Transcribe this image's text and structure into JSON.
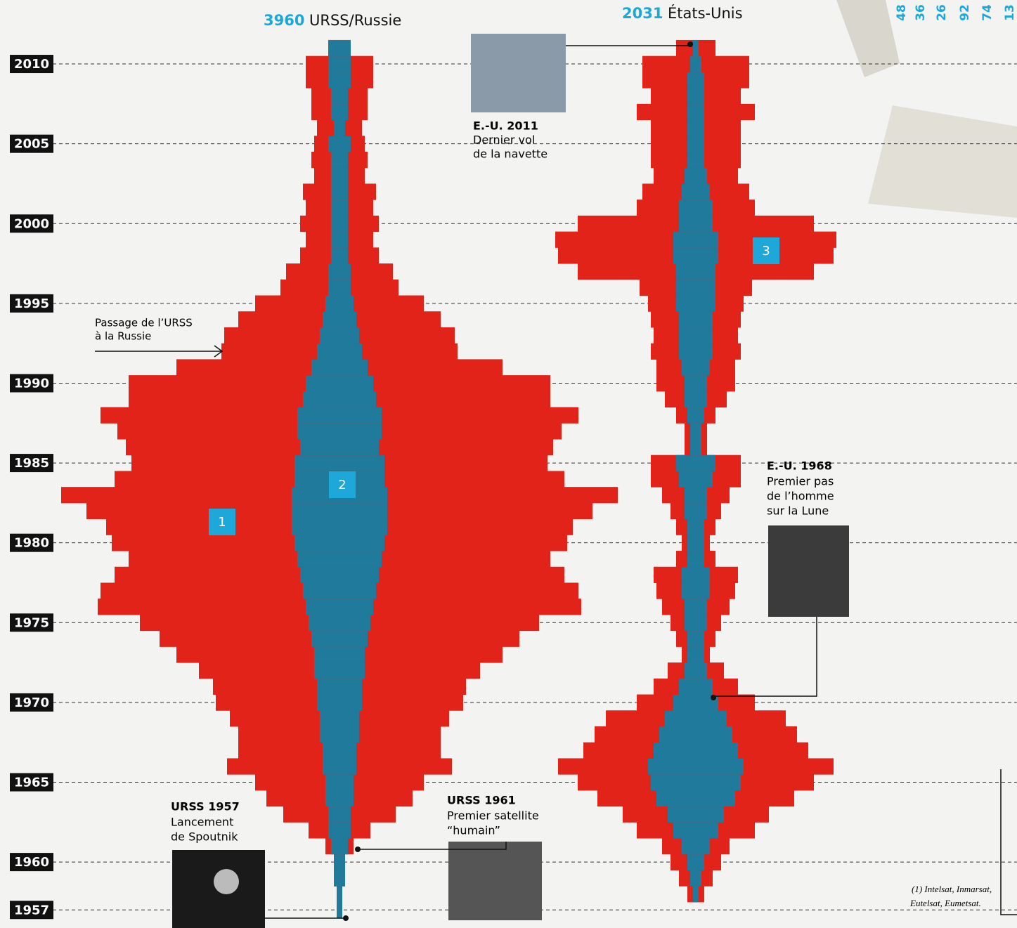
{
  "chart_data": {
    "type": "mirror-bar",
    "years": [
      1957,
      1958,
      1959,
      1960,
      1961,
      1962,
      1963,
      1964,
      1965,
      1966,
      1967,
      1968,
      1969,
      1970,
      1971,
      1972,
      1973,
      1974,
      1975,
      1976,
      1977,
      1978,
      1979,
      1980,
      1981,
      1982,
      1983,
      1984,
      1985,
      1986,
      1987,
      1988,
      1989,
      1990,
      1991,
      1992,
      1993,
      1994,
      1995,
      1996,
      1997,
      1998,
      1999,
      2000,
      2001,
      2002,
      2003,
      2004,
      2005,
      2006,
      2007,
      2008,
      2009,
      2010,
      2011
    ],
    "ylim": [
      1956,
      2012
    ],
    "yticks": [
      1957,
      1960,
      1965,
      1970,
      1975,
      1980,
      1985,
      1990,
      1995,
      2000,
      2005,
      2010
    ],
    "series": [
      {
        "name": "URSS/Russie",
        "total": 3960,
        "color": "#e2231a",
        "inner_color": "#1f7a9c",
        "values": [
          1,
          1,
          2,
          2,
          5,
          11,
          20,
          26,
          30,
          40,
          36,
          36,
          39,
          44,
          45,
          50,
          58,
          64,
          71,
          86,
          85,
          80,
          75,
          81,
          83,
          90,
          99,
          80,
          74,
          76,
          79,
          85,
          75,
          75,
          58,
          42,
          41,
          36,
          30,
          21,
          19,
          14,
          12,
          14,
          12,
          13,
          9,
          10,
          9,
          8,
          10,
          10,
          12,
          12,
          4
        ],
        "inner_values": [
          1,
          1,
          2,
          2,
          3,
          4,
          4,
          5,
          5,
          6,
          6,
          7,
          7,
          8,
          8,
          9,
          9,
          10,
          11,
          12,
          13,
          14,
          15,
          16,
          17,
          17,
          17,
          16,
          16,
          14,
          15,
          15,
          13,
          12,
          10,
          8,
          7,
          6,
          5,
          4,
          4,
          3,
          3,
          3,
          3,
          3,
          3,
          3,
          4,
          2,
          3,
          3,
          4,
          4,
          4
        ]
      },
      {
        "name": "États-Unis",
        "total": 2031,
        "color": "#e2231a",
        "inner_color": "#1f7a9c",
        "values": [
          null,
          3,
          6,
          9,
          12,
          21,
          26,
          35,
          42,
          49,
          40,
          36,
          32,
          21,
          15,
          10,
          5,
          7,
          9,
          12,
          14,
          15,
          7,
          5,
          7,
          9,
          12,
          16,
          16,
          4,
          4,
          7,
          11,
          14,
          14,
          16,
          15,
          16,
          17,
          20,
          42,
          49,
          50,
          42,
          21,
          19,
          15,
          16,
          16,
          16,
          21,
          16,
          19,
          19,
          7
        ],
        "inner_values": [
          null,
          1,
          2,
          3,
          5,
          8,
          10,
          14,
          16,
          17,
          15,
          13,
          11,
          8,
          6,
          4,
          3,
          3,
          4,
          4,
          5,
          5,
          3,
          3,
          3,
          4,
          4,
          6,
          7,
          2,
          2,
          3,
          4,
          4,
          5,
          6,
          6,
          6,
          7,
          7,
          7,
          8,
          8,
          6,
          6,
          5,
          4,
          3,
          3,
          3,
          3,
          3,
          3,
          2,
          1
        ]
      }
    ],
    "other_totals": [
      48,
      36,
      26,
      92,
      74,
      13
    ],
    "markers": [
      "1",
      "2",
      "3"
    ],
    "annotations": [
      {
        "title": "URSS 1957",
        "lines": [
          "Lancement",
          "de Spoutnik"
        ]
      },
      {
        "title": "URSS 1961",
        "lines": [
          "Premier satellite",
          "“humain”"
        ]
      },
      {
        "title": "E.-U. 2011",
        "lines": [
          "Dernier vol",
          "de la navette"
        ]
      },
      {
        "title": "E.-U. 1968",
        "lines": [
          "Premier pas",
          "de l’homme",
          "sur la Lune"
        ]
      },
      {
        "title": "Passage de l’URSS",
        "lines": [
          "à la Russie"
        ]
      }
    ],
    "footnote": [
      "(1) Intelsat, Inmarsat,",
      "Eutelsat, Eumetsat."
    ]
  }
}
